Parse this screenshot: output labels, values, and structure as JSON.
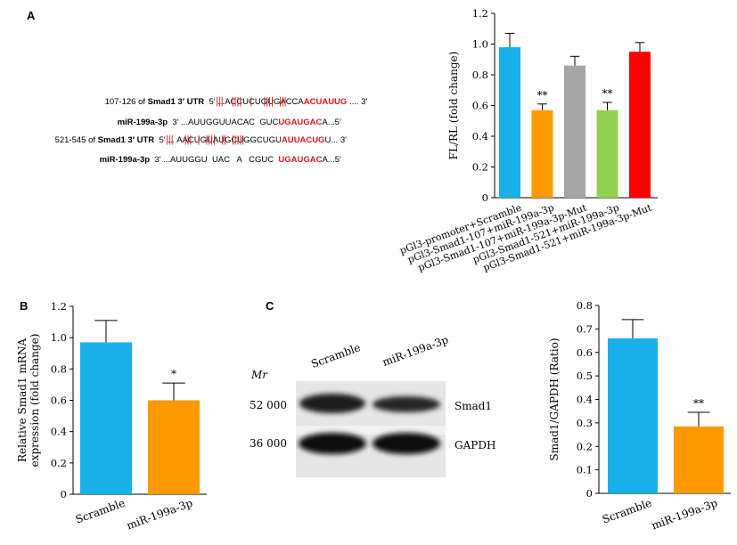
{
  "panel_labels": {
    "a": "A",
    "b": "B",
    "c": "C"
  },
  "sequences": {
    "row1": {
      "prefix": "107-126 of ",
      "gene": "Smad1 3′ UTR",
      "seq_plain": "  5′ ...ACCUCUGUGACCA",
      "seq_red": "ACUAUUG",
      "seq_end": " .... 3′"
    },
    "pair1": "|||   ||||   |    ||||  |||",
    "row2": {
      "name": "miR-199a-3p",
      "seq_plain": "  3′ ...AUUGGUUACAC  GUC",
      "seq_red": "UGAUGAC",
      "seq_end": "A...5′"
    },
    "row3": {
      "prefix": "521-545 of ",
      "gene": "Smad1 3′ UTR",
      "seq_plain": "  5′ ... AACUGUAUGCUGGCUGU",
      "seq_red": "AUUACUG",
      "seq_end": "U... 3′"
    },
    "pair3": "|||    |||  |  ||||  ||  |||||",
    "row4": {
      "name": "miR-199a-3p",
      "seq_plain": "  3′ ...AUUGGU  UAC   A   CGUC  ",
      "seq_red": "UGAUGAC",
      "seq_end": "A...5′"
    }
  },
  "blot": {
    "mr_label": "Mr",
    "lanes": [
      "Scramble",
      "miR-199a-3p"
    ],
    "markers": [
      "52 000",
      "36 000"
    ],
    "bands": [
      "Smad1",
      "GAPDH"
    ]
  },
  "chart_data": [
    {
      "id": "A",
      "type": "bar",
      "categories": [
        "pGl3-promoter+Scramble",
        "pGl3-Smad1-107+miR-199a-3p",
        "pGl3-Smad1-107+miR-199a-3p-Mut",
        "pGl3-Smad1-521+miR-199a-3p",
        "pGl3-Smad1-521+miR-199a-3p-Mut"
      ],
      "values": [
        0.98,
        0.57,
        0.86,
        0.57,
        0.95
      ],
      "errors": [
        0.09,
        0.04,
        0.06,
        0.05,
        0.06
      ],
      "significance": [
        "",
        "**",
        "",
        "**",
        ""
      ],
      "colors": [
        "#1ab0ec",
        "#ff9900",
        "#a6a6a6",
        "#92d050",
        "#ff0000"
      ],
      "ylabel": "FL/RL (fold change)",
      "ylim": [
        0,
        1.2
      ],
      "yticks": [
        "0",
        "0.2",
        "0.4",
        "0.6",
        "0.8",
        "1.0",
        "1.2"
      ]
    },
    {
      "id": "B",
      "type": "bar",
      "categories": [
        "Scramble",
        "miR-199a-3p"
      ],
      "values": [
        0.97,
        0.6
      ],
      "errors": [
        0.14,
        0.11
      ],
      "significance": [
        "",
        "*"
      ],
      "colors": [
        "#1ab0ec",
        "#ff9900"
      ],
      "ylabel": "Relative Smad1 mRNA expression (fold change)",
      "ylim": [
        0,
        1.2
      ],
      "yticks": [
        "0",
        "0.2",
        "0.4",
        "0.6",
        "0.8",
        "1.0",
        "1.2"
      ]
    },
    {
      "id": "C",
      "type": "bar",
      "categories": [
        "Scramble",
        "miR-199a-3p"
      ],
      "values": [
        0.66,
        0.285
      ],
      "errors": [
        0.08,
        0.06
      ],
      "significance": [
        "",
        "**"
      ],
      "colors": [
        "#1ab0ec",
        "#ff9900"
      ],
      "ylabel": "Smad1/GAPDH (Ratio)",
      "ylim": [
        0,
        0.8
      ],
      "yticks": [
        "0",
        "0.1",
        "0.2",
        "0.3",
        "0.4",
        "0.5",
        "0.6",
        "0.7",
        "0.8"
      ]
    }
  ]
}
